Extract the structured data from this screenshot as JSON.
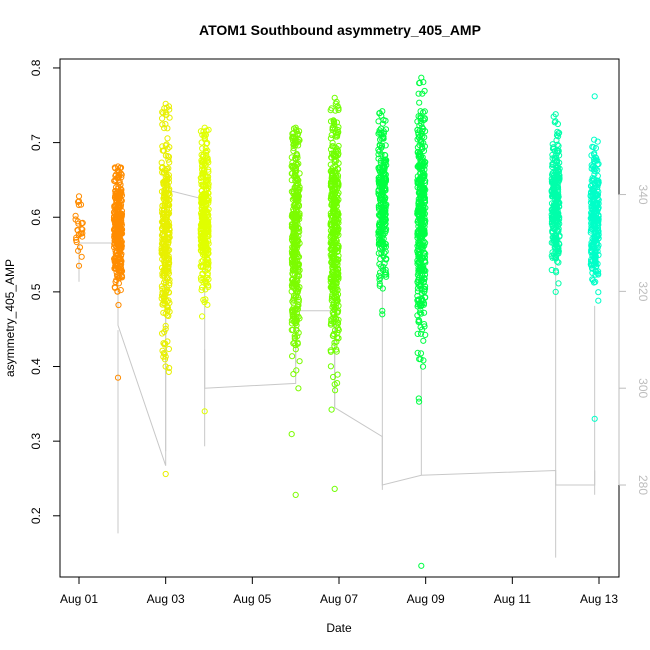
{
  "chart_data": {
    "type": "scatter",
    "title": "ATOM1 Southbound asymmetry_405_AMP",
    "xlabel": "Date",
    "ylabel": "asymmetry_405_AMP",
    "x_range_days": [
      0,
      12
    ],
    "x_ticks": [
      {
        "day": 0,
        "label": "Aug 01"
      },
      {
        "day": 2,
        "label": "Aug 03"
      },
      {
        "day": 4,
        "label": "Aug 05"
      },
      {
        "day": 6,
        "label": "Aug 07"
      },
      {
        "day": 8,
        "label": "Aug 09"
      },
      {
        "day": 10,
        "label": "Aug 11"
      },
      {
        "day": 12,
        "label": "Aug 13"
      }
    ],
    "ylim": [
      0.118,
      0.812
    ],
    "y_ticks": [
      0.2,
      0.3,
      0.4,
      0.5,
      0.6,
      0.7,
      0.8
    ],
    "y2label": "",
    "y2lim": [
      261,
      368
    ],
    "y2_ticks": [
      280,
      300,
      320,
      340
    ],
    "grid": false,
    "clusters": [
      {
        "day": 0.0,
        "color": "#ff8c00",
        "min": 0.535,
        "max": 0.628,
        "center": 0.585,
        "spread": 0.022,
        "count": 25
      },
      {
        "day": 0.9,
        "color": "#ff8c00",
        "min": 0.385,
        "max": 0.668,
        "center": 0.585,
        "spread": 0.04,
        "count": 320
      },
      {
        "day": 2.0,
        "color": "#e8f000",
        "min": 0.256,
        "max": 0.752,
        "center": 0.58,
        "spread": 0.07,
        "count": 320
      },
      {
        "day": 2.9,
        "color": "#e0ff00",
        "min": 0.34,
        "max": 0.72,
        "center": 0.6,
        "spread": 0.05,
        "count": 320
      },
      {
        "day": 5.0,
        "color": "#7cfc00",
        "min": 0.228,
        "max": 0.72,
        "center": 0.58,
        "spread": 0.08,
        "count": 380
      },
      {
        "day": 5.9,
        "color": "#70ff00",
        "min": 0.236,
        "max": 0.76,
        "center": 0.58,
        "spread": 0.08,
        "count": 420
      },
      {
        "day": 7.0,
        "color": "#00ff40",
        "min": 0.47,
        "max": 0.742,
        "center": 0.62,
        "spread": 0.05,
        "count": 260
      },
      {
        "day": 7.9,
        "color": "#00ff44",
        "min": 0.133,
        "max": 0.787,
        "center": 0.6,
        "spread": 0.08,
        "count": 420
      },
      {
        "day": 11.0,
        "color": "#00ffaa",
        "min": 0.5,
        "max": 0.738,
        "center": 0.62,
        "spread": 0.04,
        "count": 280
      },
      {
        "day": 11.9,
        "color": "#00ffc8",
        "min": 0.33,
        "max": 0.762,
        "center": 0.6,
        "spread": 0.04,
        "count": 260
      }
    ],
    "secondary_series": {
      "name": "grey trace (right axis)",
      "color": "#c8c8c8",
      "points": [
        {
          "day": 0.0,
          "value": 322
        },
        {
          "day": 0.0,
          "value": 330
        },
        {
          "day": 0.9,
          "value": 330
        },
        {
          "day": 0.9,
          "value": 313
        },
        {
          "day": 2.0,
          "value": 284
        },
        {
          "day": 2.0,
          "value": 341
        },
        {
          "day": 2.9,
          "value": 339
        },
        {
          "day": 2.9,
          "value": 300
        },
        {
          "day": 5.0,
          "value": 301
        },
        {
          "day": 5.0,
          "value": 316
        },
        {
          "day": 5.9,
          "value": 316
        },
        {
          "day": 5.9,
          "value": 296
        },
        {
          "day": 7.0,
          "value": 290
        },
        {
          "day": 7.0,
          "value": 280
        },
        {
          "day": 7.9,
          "value": 282
        },
        {
          "day": 11.0,
          "value": 283
        },
        {
          "day": 11.0,
          "value": 280
        },
        {
          "day": 11.9,
          "value": 280
        },
        {
          "day": 11.9,
          "value": 283
        }
      ],
      "vertical_ranges": [
        {
          "day": 0.9,
          "min": 270,
          "max": 312
        },
        {
          "day": 2.0,
          "min": 287,
          "max": 335
        },
        {
          "day": 2.9,
          "min": 288,
          "max": 308
        },
        {
          "day": 5.0,
          "min": 305,
          "max": 353
        },
        {
          "day": 5.9,
          "min": 296,
          "max": 345
        },
        {
          "day": 7.0,
          "min": 279,
          "max": 350
        },
        {
          "day": 7.9,
          "min": 282,
          "max": 305
        },
        {
          "day": 11.0,
          "min": 265,
          "max": 330
        },
        {
          "day": 11.9,
          "min": 278,
          "max": 317
        }
      ]
    }
  }
}
